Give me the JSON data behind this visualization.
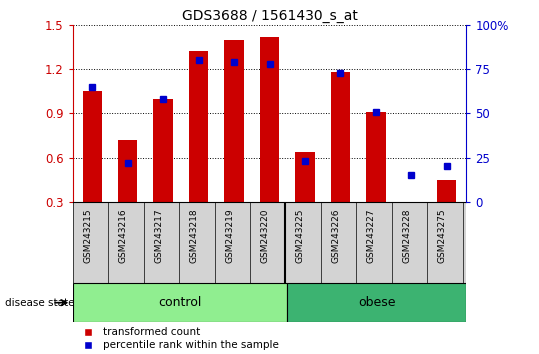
{
  "title": "GDS3688 / 1561430_s_at",
  "samples": [
    "GSM243215",
    "GSM243216",
    "GSM243217",
    "GSM243218",
    "GSM243219",
    "GSM243220",
    "GSM243225",
    "GSM243226",
    "GSM243227",
    "GSM243228",
    "GSM243275"
  ],
  "red_values": [
    1.05,
    0.72,
    1.0,
    1.32,
    1.4,
    1.42,
    0.64,
    1.18,
    0.91,
    0.3,
    0.45
  ],
  "blue_pct": [
    65,
    22,
    58,
    80,
    79,
    78,
    23,
    73,
    51,
    15,
    20
  ],
  "red_base": 0.3,
  "ylim_left": [
    0.3,
    1.5
  ],
  "ylim_right": [
    0,
    100
  ],
  "yticks_left": [
    0.3,
    0.6,
    0.9,
    1.2,
    1.5
  ],
  "yticks_right": [
    0,
    25,
    50,
    75,
    100
  ],
  "yticklabels_right": [
    "0",
    "25",
    "50",
    "75",
    "100%"
  ],
  "n_control": 6,
  "group_labels": [
    "control",
    "obese"
  ],
  "group_colors": [
    "#90EE90",
    "#90EE90"
  ],
  "bar_color_red": "#cc0000",
  "dot_color_blue": "#0000cc",
  "bg_plot": "#ffffff",
  "label_bg": "#d3d3d3",
  "legend_red_label": "transformed count",
  "legend_blue_label": "percentile rank within the sample",
  "bar_width": 0.55,
  "disease_state_label": "disease state"
}
